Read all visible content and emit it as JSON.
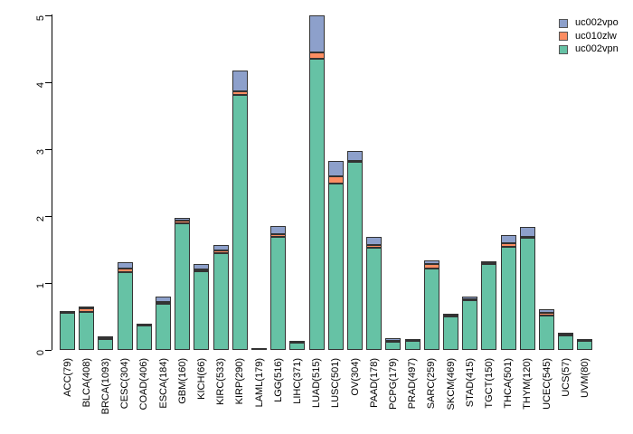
{
  "figure": {
    "background": "#ffffff",
    "axis_color": "#000000",
    "bar_border_color": "#333333"
  },
  "legend": {
    "position": "top-right",
    "items": [
      {
        "label": "uc002vpo",
        "color": "#8da0cb"
      },
      {
        "label": "uc010zlw",
        "color": "#fc8d62"
      },
      {
        "label": "uc002vpn",
        "color": "#66c2a5"
      }
    ]
  },
  "chart_data": {
    "type": "bar",
    "stacked": true,
    "title": "",
    "xlabel": "",
    "ylabel": "",
    "ylim": [
      0,
      5
    ],
    "yticks": [
      0,
      1,
      2,
      3,
      4,
      5
    ],
    "grid": false,
    "legend_position": "top-right",
    "categories": [
      "ACC(79)",
      "BLCA(408)",
      "BRCA(1093)",
      "CESC(304)",
      "COAD(406)",
      "ESCA(184)",
      "GBM(160)",
      "KICH(66)",
      "KIRC(533)",
      "KIRP(290)",
      "LAML(179)",
      "LGG(516)",
      "LIHC(371)",
      "LUAD(515)",
      "LUSC(501)",
      "OV(304)",
      "PAAD(178)",
      "PCPG(179)",
      "PRAD(497)",
      "SARC(259)",
      "SKCM(469)",
      "STAD(415)",
      "TGCT(150)",
      "THCA(501)",
      "THYM(120)",
      "UCEC(545)",
      "UCS(57)",
      "UVM(80)"
    ],
    "series": [
      {
        "name": "uc002vpn",
        "color": "#66c2a5",
        "values": [
          0.55,
          0.57,
          0.16,
          1.16,
          0.36,
          0.69,
          1.89,
          1.18,
          1.45,
          3.81,
          0.01,
          1.69,
          0.11,
          4.35,
          2.48,
          2.81,
          1.53,
          0.12,
          0.14,
          1.22,
          0.5,
          0.74,
          1.29,
          1.54,
          1.67,
          0.52,
          0.22,
          0.14
        ]
      },
      {
        "name": "uc010zlw",
        "color": "#fc8d62",
        "values": [
          0.01,
          0.05,
          0.01,
          0.05,
          0.01,
          0.02,
          0.04,
          0.02,
          0.04,
          0.05,
          0.0,
          0.04,
          0.0,
          0.1,
          0.11,
          0.02,
          0.04,
          0.01,
          0.0,
          0.07,
          0.01,
          0.02,
          0.01,
          0.06,
          0.02,
          0.04,
          0.01,
          0.0
        ]
      },
      {
        "name": "uc002vpo",
        "color": "#8da0cb",
        "values": [
          0.01,
          0.03,
          0.03,
          0.1,
          0.01,
          0.09,
          0.04,
          0.09,
          0.08,
          0.32,
          0.0,
          0.12,
          0.01,
          0.55,
          0.23,
          0.15,
          0.12,
          0.04,
          0.02,
          0.05,
          0.02,
          0.04,
          0.02,
          0.12,
          0.15,
          0.05,
          0.01,
          0.02
        ]
      }
    ]
  }
}
